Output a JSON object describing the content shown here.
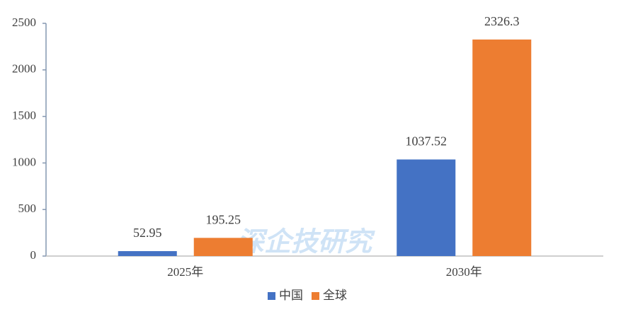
{
  "chart_data": {
    "type": "bar",
    "categories": [
      "2025年",
      "2030年"
    ],
    "series": [
      {
        "name": "中国",
        "color": "#4472c4",
        "values": [
          52.95,
          1037.52
        ]
      },
      {
        "name": "全球",
        "color": "#ed7d31",
        "values": [
          195.25,
          2326.3
        ]
      }
    ],
    "ylim": [
      0,
      2500
    ],
    "yticks": [
      0,
      500,
      1000,
      1500,
      2000,
      2500
    ],
    "legend": "bottom",
    "watermark": "深企技研究"
  }
}
